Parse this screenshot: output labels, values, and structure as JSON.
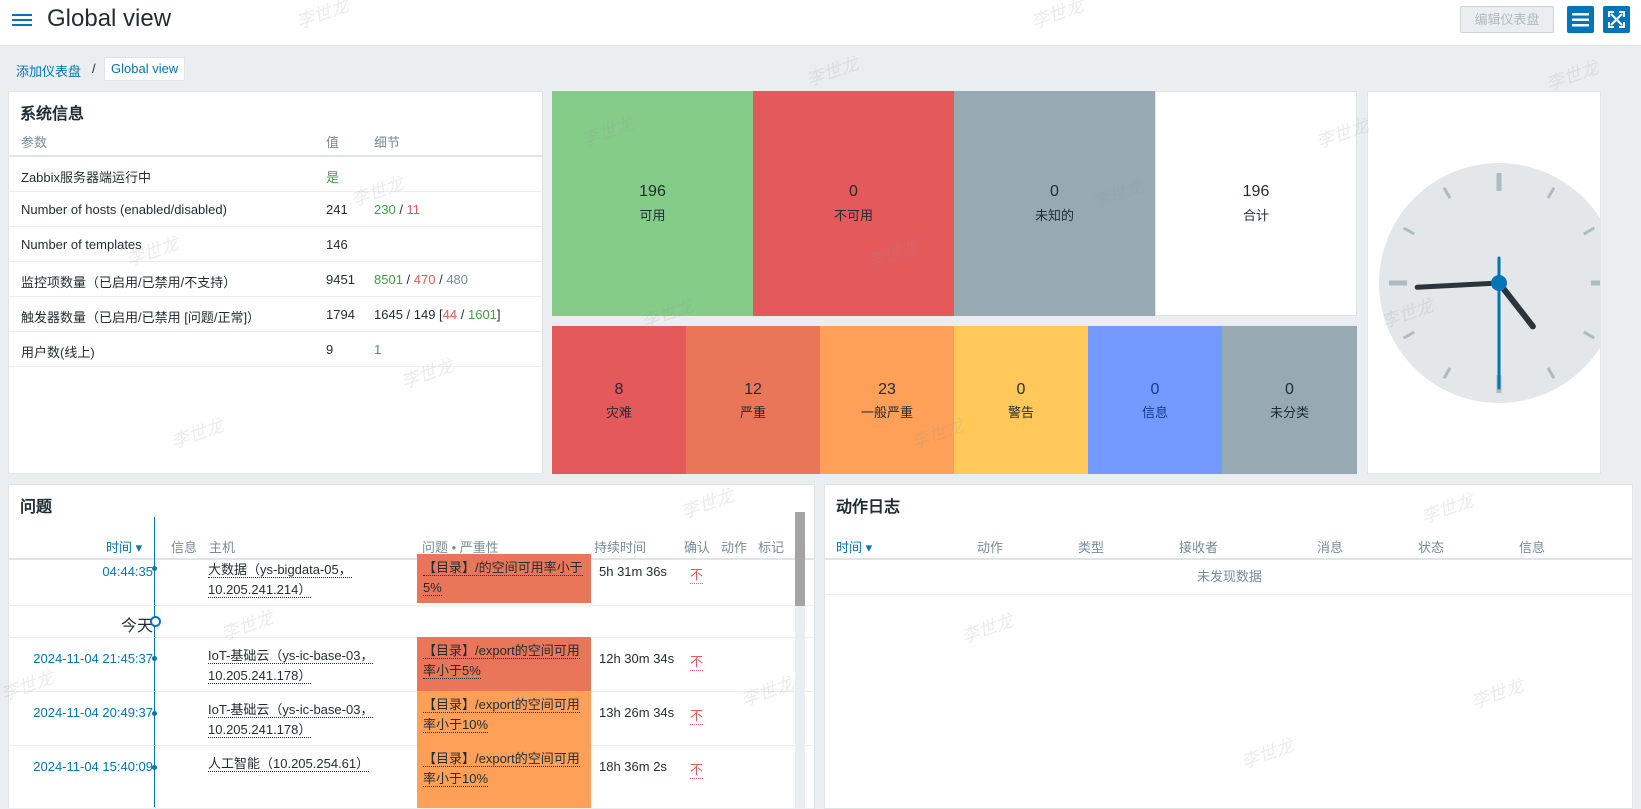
{
  "header": {
    "title": "Global view",
    "edit_label": "编辑仪表盘"
  },
  "breadcrumb": {
    "parent": "添加仪表盘",
    "separator": "/",
    "current": "Global view"
  },
  "system_info": {
    "title": "系统信息",
    "columns": [
      "参数",
      "值",
      "细节"
    ],
    "rows": [
      {
        "param": "Zabbix服务器端运行中",
        "value": "是"
      },
      {
        "param": "Number of hosts (enabled/disabled)",
        "value": "241",
        "d1": "230",
        "s1": " / ",
        "d2": "11"
      },
      {
        "param": "Number of templates",
        "value": "146"
      },
      {
        "param": "监控项数量（已启用/已禁用/不支持）",
        "value": "9451",
        "d1": "8501",
        "s1": " / ",
        "d2": "470",
        "s2": " / ",
        "d3": "480"
      },
      {
        "param": "触发器数量（已启用/已禁用 [问题/正常]）",
        "value": "1794",
        "d0": "1645 / 149 [",
        "d1": "44",
        "s1": " / ",
        "d2": "1601",
        "d3": "]"
      },
      {
        "param": "用户数(线上)",
        "value": "9",
        "d1": "1"
      }
    ]
  },
  "host_availability": [
    {
      "count": "196",
      "label": "可用",
      "color": "#86cc89"
    },
    {
      "count": "0",
      "label": "不可用",
      "color": "#e45959"
    },
    {
      "count": "0",
      "label": "未知的",
      "color": "#97aab3"
    },
    {
      "count": "196",
      "label": "合计",
      "color": "#ffffff"
    }
  ],
  "problem_severity": [
    {
      "count": "8",
      "label": "灾难",
      "color": "#e45959"
    },
    {
      "count": "12",
      "label": "严重",
      "color": "#e97659"
    },
    {
      "count": "23",
      "label": "一般严重",
      "color": "#ffa059"
    },
    {
      "count": "0",
      "label": "警告",
      "color": "#ffc859"
    },
    {
      "count": "0",
      "label": "信息",
      "color": "#7499ff"
    },
    {
      "count": "0",
      "label": "未分类",
      "color": "#97aab3"
    }
  ],
  "clock": {
    "hour": 4,
    "minute": 44,
    "second": 30
  },
  "problems": {
    "title": "问题",
    "columns": {
      "time": "时间 ▾",
      "info": "信息",
      "host": "主机",
      "problem": "问题 • 严重性",
      "duration": "持续时间",
      "ack": "确认",
      "action": "动作",
      "tags": "标记"
    },
    "today_label": "今天",
    "rows": [
      {
        "time": "04:44:35",
        "host": "大数据（ys-bigdata-05，10.205.241.214）",
        "problem": "【目录】/的空间可用率小于5%",
        "color": "#e97659",
        "duration": "5h 31m 36s",
        "ack": "不"
      },
      {
        "time": "2024-11-04 21:45:37",
        "host": "IoT-基础云（ys-ic-base-03，10.205.241.178）",
        "problem": "【目录】/export的空间可用率小于5%",
        "color": "#e97659",
        "duration": "12h 30m 34s",
        "ack": "不"
      },
      {
        "time": "2024-11-04 20:49:37",
        "host": "IoT-基础云（ys-ic-base-03，10.205.241.178）",
        "problem": "【目录】/export的空间可用率小于10%",
        "color": "#ffa059",
        "duration": "13h 26m 34s",
        "ack": "不"
      },
      {
        "time": "2024-11-04 15:40:09",
        "host": "人工智能（10.205.254.61）",
        "problem": "【目录】/export的空间可用率小于10%",
        "color": "#ffa059",
        "duration": "18h 36m 2s",
        "ack": "不"
      }
    ]
  },
  "action_log": {
    "title": "动作日志",
    "columns": [
      "时间 ▾",
      "动作",
      "类型",
      "接收者",
      "消息",
      "状态",
      "信息"
    ],
    "empty": "未发现数据"
  },
  "watermark": "李世龙"
}
